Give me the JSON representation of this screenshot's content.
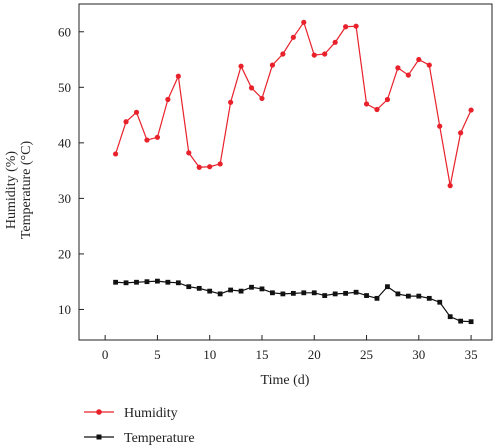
{
  "chart_data": {
    "type": "line",
    "xlabel": "Time (d)",
    "ylabel_lines": [
      "Humidity (%)",
      "Temperature (°C)"
    ],
    "xlim": [
      -2.5,
      37
    ],
    "ylim": [
      4.5,
      65
    ],
    "xticks": [
      0,
      5,
      10,
      15,
      20,
      25,
      30,
      35
    ],
    "yticks": [
      10,
      20,
      30,
      40,
      50,
      60
    ],
    "grid": false,
    "legend_position": "bottom-left",
    "x": [
      1,
      2,
      3,
      4,
      5,
      6,
      7,
      8,
      9,
      10,
      11,
      12,
      13,
      14,
      15,
      16,
      17,
      18,
      19,
      20,
      21,
      22,
      23,
      24,
      25,
      26,
      27,
      28,
      29,
      30,
      31,
      32,
      33,
      34,
      35
    ],
    "series": [
      {
        "name": "Humidity",
        "color": "#e8212b",
        "marker": "circle",
        "values": [
          38.0,
          43.8,
          45.5,
          40.5,
          41.0,
          47.8,
          52.0,
          38.2,
          35.6,
          35.7,
          36.2,
          47.3,
          53.8,
          49.9,
          48.0,
          54.0,
          56.0,
          59.0,
          61.7,
          55.8,
          56.0,
          58.1,
          60.9,
          61.0,
          47.0,
          46.0,
          47.8,
          53.5,
          52.2,
          55.0,
          54.0,
          43.0,
          32.3,
          41.8,
          45.9
        ]
      },
      {
        "name": "Temperature",
        "color": "#111111",
        "marker": "square",
        "values": [
          14.9,
          14.8,
          14.9,
          15.0,
          15.1,
          14.9,
          14.8,
          14.1,
          13.8,
          13.3,
          12.8,
          13.5,
          13.3,
          14.0,
          13.7,
          13.0,
          12.8,
          12.9,
          13.0,
          13.0,
          12.5,
          12.8,
          12.9,
          13.1,
          12.5,
          12.0,
          14.1,
          12.8,
          12.4,
          12.4,
          12.0,
          11.3,
          8.7,
          7.9,
          7.8
        ]
      }
    ]
  }
}
